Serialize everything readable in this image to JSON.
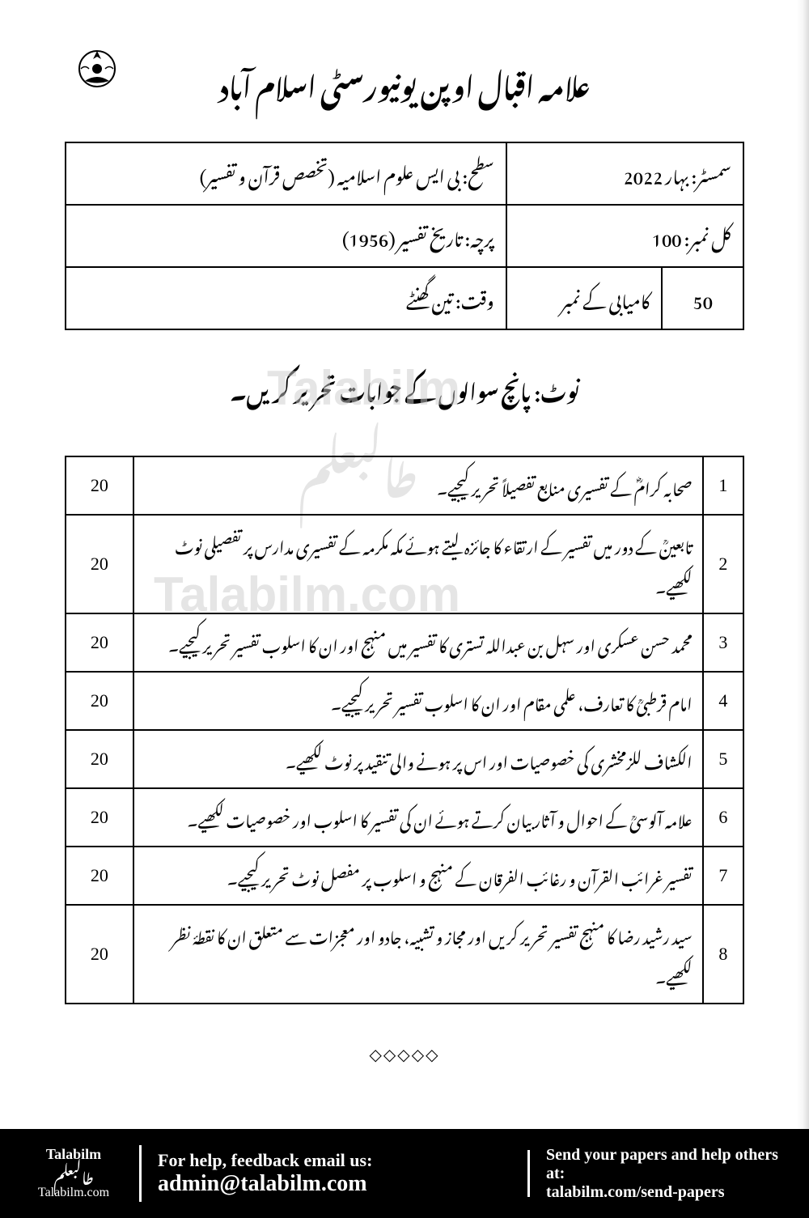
{
  "header": {
    "title": "علامہ اقبال اوپن یونیورسٹی اسلام آباد"
  },
  "info": {
    "level_label": "سطح: بی ایس علوم اسلامیہ (تخصص قرآن و تفسیر)",
    "semester": "سمسٹر: بہار 2022",
    "paper": "پرچہ: تاریخ تفسیر (1956)",
    "total_marks": "کل نمبر: 100",
    "time": "وقت: تین گھنٹے",
    "pass_label": "کامیابی کے نمبر",
    "pass_marks": "50"
  },
  "note": "نوٹ: پانچ سوالوں کے جوابات تحریر کریں۔",
  "watermarks": {
    "wm1": "Talabilm",
    "wm1_urdu": "طالبعلم",
    "wm2": "Talabilm.com"
  },
  "questions": [
    {
      "num": "1",
      "text": "صحابہ کرامؓ کے تفسیری منابع تفصیلاً تحریر کیجیے۔",
      "marks": "20"
    },
    {
      "num": "2",
      "text": "تابعینؒ کے دور میں تفسیر کے ارتقاء کا جائزہ لیتے ہوئے مکہ مکرمہ کے تفسیری مدارس پر تفصیلی نوٹ لکھیے۔",
      "marks": "20"
    },
    {
      "num": "3",
      "text": "محمد حسن عسکری اور سہل بن عبداللہ تستری کا تفسیر میں منہج اور ان کا اسلوب تفسیر تحریر کیجیے۔",
      "marks": "20"
    },
    {
      "num": "4",
      "text": "امام قرطبیؒ کا تعارف، علمی مقام اور ان کا اسلوب تفسیر تحریر کیجیے۔",
      "marks": "20"
    },
    {
      "num": "5",
      "text": "الکشاف للزمخشری کی خصوصیات اور اس پر ہونے والی تنقید پر نوٹ لکھیے۔",
      "marks": "20"
    },
    {
      "num": "6",
      "text": "علامہ آلوسیؒ کے احوال و آثار بیان کرتے ہوئے ان کی تفسیر کا اسلوب اور خصوصیات لکھیے۔",
      "marks": "20"
    },
    {
      "num": "7",
      "text": "تفسیر غرائب القرآن و رغائب الفرقان کے منہج و اسلوب پر مفصل نوٹ تحریر کیجیے۔",
      "marks": "20"
    },
    {
      "num": "8",
      "text": "سید رشید رضا کا منہج تفسیر تحریر کریں اور مجاز و تشبیہ، جادو اور معجزات سے متعلق ان کا نقطۂ نظر لکھیے۔",
      "marks": "20"
    }
  ],
  "divider": "◇◇◇◇◇",
  "footer": {
    "brand": "Talabilm",
    "brand_urdu": "طالبعلم",
    "brand_url": "Talabilm.com",
    "help_text": "For help, feedback email us:",
    "email": "admin@talabilm.com",
    "send_text": "Send your papers and help others at:",
    "send_url": "talabilm.com/send-papers"
  },
  "styling": {
    "page_bg": "#ffffff",
    "text_color": "#000000",
    "border_color": "#000000",
    "watermark_color": "#cccccc",
    "footer_bg": "#000000",
    "footer_text": "#ffffff",
    "title_fontsize": 34,
    "info_fontsize": 22,
    "note_fontsize": 26,
    "question_fontsize": 20,
    "marks_fontsize": 22
  }
}
